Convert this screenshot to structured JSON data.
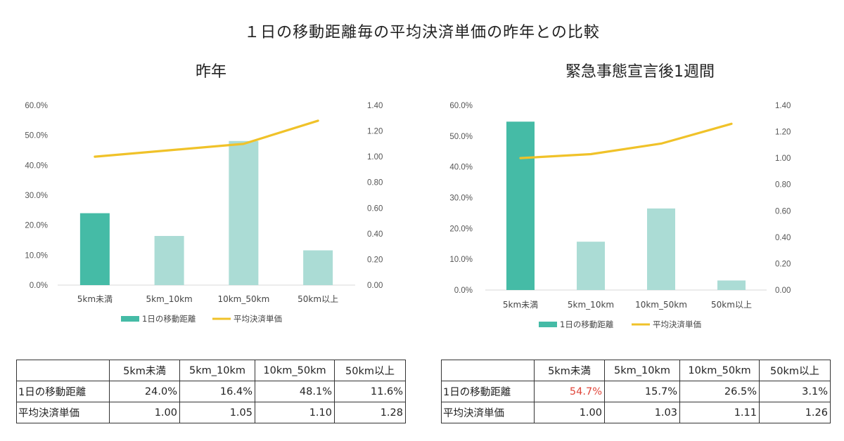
{
  "title": "１日の移動距離毎の平均決済単価の昨年との比較",
  "colors": {
    "bar_primary": "#45bba6",
    "bar_light": "#abdcd5",
    "line": "#f0c229",
    "highlight": "#e0463a"
  },
  "charts": [
    {
      "panel_title": "昨年",
      "legend": {
        "bar": "1日の移動距離",
        "line": "平均決済単価"
      },
      "left_ticks": [
        "0.0%",
        "10.0%",
        "20.0%",
        "30.0%",
        "40.0%",
        "50.0%",
        "60.0%"
      ],
      "right_ticks": [
        "0.00",
        "0.20",
        "0.40",
        "0.60",
        "0.80",
        "1.00",
        "1.20",
        "1.40"
      ],
      "table": {
        "headers": [
          "5km未満",
          "5km_10km",
          "10km_50km",
          "50km以上"
        ],
        "rows": [
          {
            "label": "1日の移動距離",
            "values": [
              "24.0%",
              "16.4%",
              "48.1%",
              "11.6%"
            ]
          },
          {
            "label": "平均決済単価",
            "values": [
              "1.00",
              "1.05",
              "1.10",
              "1.28"
            ]
          }
        ]
      }
    },
    {
      "panel_title": "緊急事態宣言後1週間",
      "legend": {
        "bar": "1日の移動距離",
        "line": "平均決済単価"
      },
      "left_ticks": [
        "0.0%",
        "10.0%",
        "20.0%",
        "30.0%",
        "40.0%",
        "50.0%",
        "60.0%"
      ],
      "right_ticks": [
        "0.00",
        "0.20",
        "0.40",
        "0.60",
        "0.80",
        "1.00",
        "1.20",
        "1.40"
      ],
      "table": {
        "headers": [
          "5km未満",
          "5km_10km",
          "10km_50km",
          "50km以上"
        ],
        "rows": [
          {
            "label": "1日の移動距離",
            "values": [
              "54.7%",
              "15.7%",
              "26.5%",
              "3.1%"
            ]
          },
          {
            "label": "平均決済単価",
            "values": [
              "1.00",
              "1.03",
              "1.11",
              "1.26"
            ]
          }
        ]
      }
    }
  ],
  "chart_data": [
    {
      "type": "bar",
      "title": "昨年",
      "categories": [
        "5km未満",
        "5km_10km",
        "10km_50km",
        "50km以上"
      ],
      "series": [
        {
          "name": "1日の移動距離",
          "type": "bar",
          "axis": "left",
          "unit": "%",
          "values": [
            24.0,
            16.4,
            48.1,
            11.6
          ]
        },
        {
          "name": "平均決済単価",
          "type": "line",
          "axis": "right",
          "values": [
            1.0,
            1.05,
            1.1,
            1.28
          ]
        }
      ],
      "ylim": [
        0,
        60
      ],
      "y2lim": [
        0,
        1.4
      ],
      "highlight_index": 0,
      "legend": "bottom",
      "grid": false
    },
    {
      "type": "bar",
      "title": "緊急事態宣言後1週間",
      "categories": [
        "5km未満",
        "5km_10km",
        "10km_50km",
        "50km以上"
      ],
      "series": [
        {
          "name": "1日の移動距離",
          "type": "bar",
          "axis": "left",
          "unit": "%",
          "values": [
            54.7,
            15.7,
            26.5,
            3.1
          ]
        },
        {
          "name": "平均決済単価",
          "type": "line",
          "axis": "right",
          "values": [
            1.0,
            1.03,
            1.11,
            1.26
          ]
        }
      ],
      "ylim": [
        0,
        60
      ],
      "y2lim": [
        0,
        1.4
      ],
      "highlight_index": 0,
      "legend": "bottom",
      "grid": false
    }
  ]
}
